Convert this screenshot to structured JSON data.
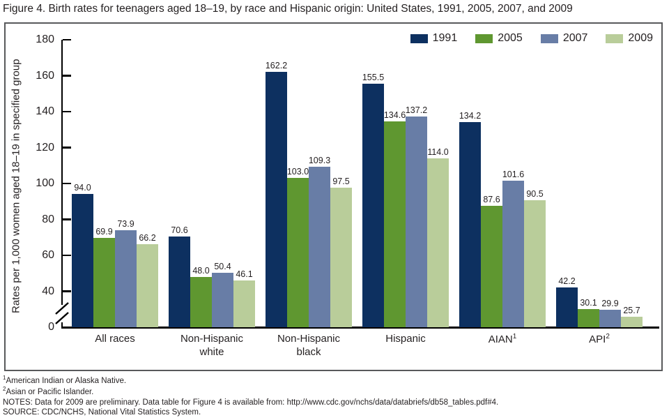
{
  "title": "Figure 4. Birth rates for teenagers aged 18–19, by race and Hispanic origin: United States, 1991, 2005, 2007, and 2009",
  "chart_data": {
    "type": "bar",
    "title": "Figure 4. Birth rates for teenagers aged 18–19, by race and Hispanic origin: United States, 1991, 2005, 2007, and 2009",
    "xlabel": "",
    "ylabel": "Rates per 1,000 women aged 18–19 in specified group",
    "ylim": [
      0,
      180
    ],
    "y_ticks": [
      0,
      40,
      60,
      80,
      100,
      120,
      140,
      160,
      180
    ],
    "axis_break_between": [
      0,
      40
    ],
    "grid": false,
    "legend_position": "top-right",
    "value_labels": true,
    "categories": [
      {
        "lines": [
          "All races"
        ],
        "sup": ""
      },
      {
        "lines": [
          "Non-Hispanic",
          "white"
        ],
        "sup": ""
      },
      {
        "lines": [
          "Non-Hispanic",
          "black"
        ],
        "sup": ""
      },
      {
        "lines": [
          "Hispanic"
        ],
        "sup": ""
      },
      {
        "lines": [
          "AIAN"
        ],
        "sup": "1"
      },
      {
        "lines": [
          "API"
        ],
        "sup": "2"
      }
    ],
    "series": [
      {
        "name": "1991",
        "color": "#0d3060",
        "values": [
          94.0,
          70.6,
          162.2,
          155.5,
          134.2,
          42.2
        ]
      },
      {
        "name": "2005",
        "color": "#5f9730",
        "values": [
          69.9,
          48.0,
          103.0,
          134.6,
          87.6,
          30.1
        ]
      },
      {
        "name": "2007",
        "color": "#687da6",
        "values": [
          73.9,
          50.4,
          109.3,
          137.2,
          101.6,
          29.9
        ]
      },
      {
        "name": "2009",
        "color": "#b9cd9a",
        "values": [
          66.2,
          46.1,
          97.5,
          114.0,
          90.5,
          25.7
        ]
      }
    ]
  },
  "footnotes": [
    {
      "sup": "1",
      "text": "American Indian or Alaska Native."
    },
    {
      "sup": "2",
      "text": "Asian or Pacific Islander."
    },
    {
      "sup": "",
      "text": "NOTES: Data for 2009 are preliminary. Data table for Figure 4 is available from: http://www.cdc.gov/nchs/data/databriefs/db58_tables.pdf#4."
    },
    {
      "sup": "",
      "text": "SOURCE: CDC/NCHS, National Vital Statistics System."
    }
  ]
}
